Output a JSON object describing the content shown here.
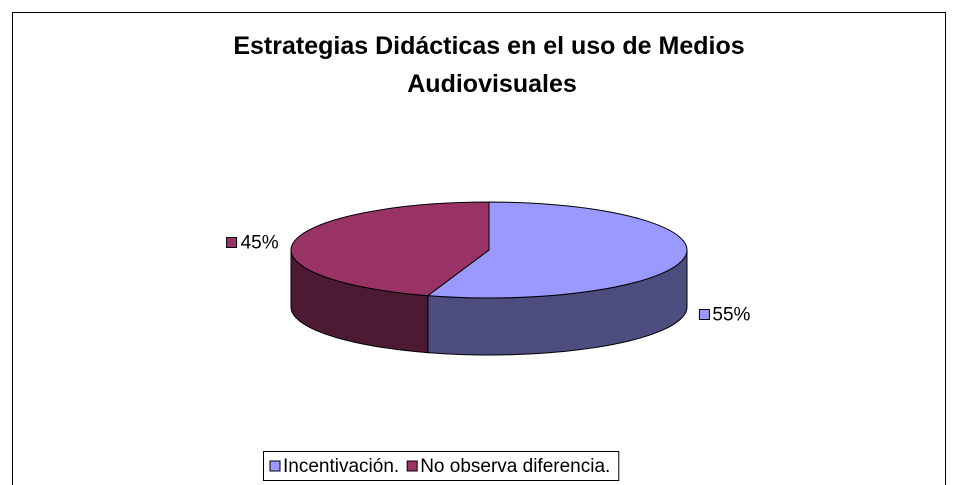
{
  "chart_data": {
    "type": "pie3d",
    "title": "Estrategias Didácticas en el uso de Medios Audiovisuales",
    "categories": [
      "Incentivación.",
      "No observa diferencia."
    ],
    "values": [
      55,
      45
    ],
    "value_labels": [
      "55%",
      "45%"
    ],
    "colors": [
      "#9999ff",
      "#993366"
    ],
    "legend": "bottom"
  }
}
